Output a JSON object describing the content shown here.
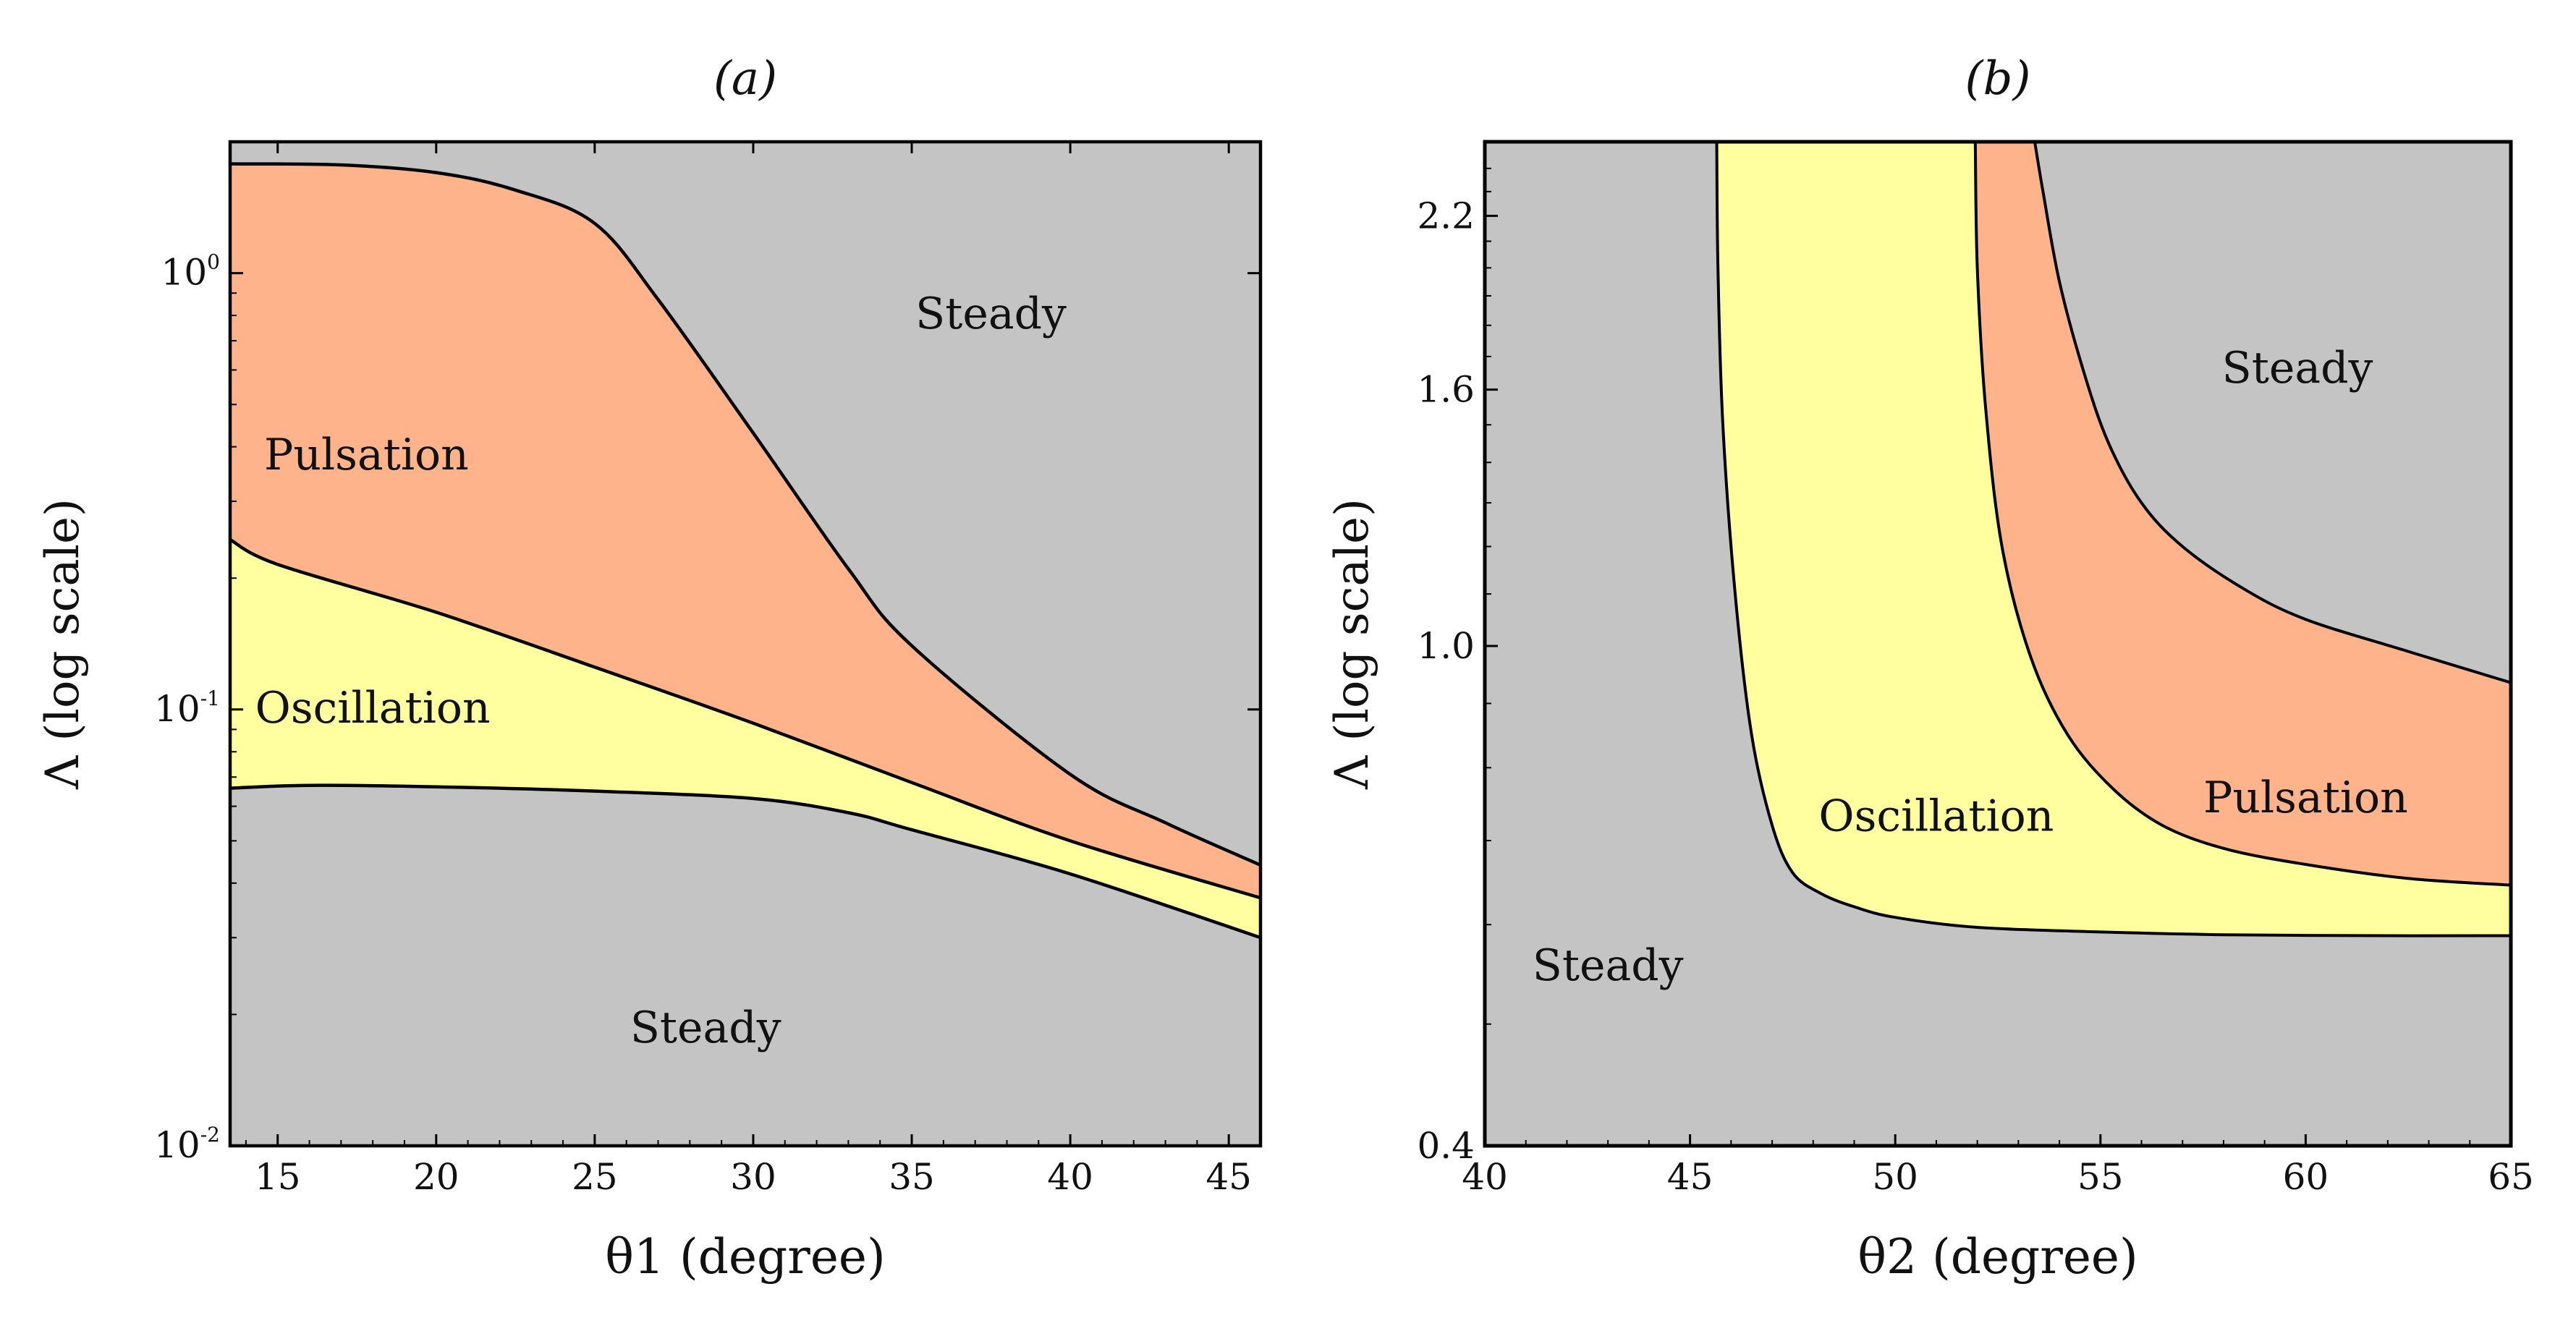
{
  "figure": {
    "background": "#ffffff"
  },
  "colors": {
    "steady": "#c4c4c4",
    "pulsation": "#ffb38a",
    "oscillation": "#ffff9f",
    "boundary": "#000000"
  },
  "chart_data": [
    {
      "type": "area",
      "title": "(a)",
      "xlabel": "θ1 (degree)",
      "ylabel": "Λ (log scale)",
      "xlim": [
        13.5,
        46
      ],
      "ylim": [
        0.01,
        2
      ],
      "yscale": "log",
      "xticks": [
        15,
        20,
        25,
        30,
        35,
        40,
        45
      ],
      "xtick_labels": [
        "15",
        "20",
        "25",
        "30",
        "35",
        "40",
        "45"
      ],
      "yticks": [
        0.01,
        0.1,
        1
      ],
      "ytick_labels": [
        {
          "base": "10",
          "exp": "-2"
        },
        {
          "base": "10",
          "exp": "-1"
        },
        {
          "base": "10",
          "exp": "0"
        }
      ],
      "boundaries": {
        "steady_lower": {
          "x": [
            13.5,
            16,
            20,
            25,
            30,
            33,
            35,
            40,
            46
          ],
          "y": [
            0.066,
            0.067,
            0.0665,
            0.065,
            0.0625,
            0.058,
            0.053,
            0.042,
            0.03
          ]
        },
        "oscillation_upper": {
          "x": [
            13.5,
            15,
            20,
            25,
            30,
            35,
            40,
            46
          ],
          "y": [
            0.245,
            0.215,
            0.167,
            0.125,
            0.093,
            0.068,
            0.05,
            0.037
          ]
        },
        "pulsation_upper": {
          "x": [
            13.5,
            17,
            20,
            22.5,
            25,
            27,
            30,
            33,
            35,
            40,
            43,
            46
          ],
          "y": [
            1.78,
            1.77,
            1.7,
            1.55,
            1.3,
            0.87,
            0.43,
            0.21,
            0.14,
            0.071,
            0.055,
            0.044
          ]
        }
      },
      "regions": [
        {
          "label": "Steady",
          "x": 37.5,
          "y": 0.8
        },
        {
          "label": "Pulsation",
          "x": 17.8,
          "y": 0.38
        },
        {
          "label": "Oscillation",
          "x": 18.0,
          "y": 0.1
        },
        {
          "label": "Steady",
          "x": 28.5,
          "y": 0.0185
        }
      ]
    },
    {
      "type": "area",
      "title": "(b)",
      "xlabel": "θ2 (degree)",
      "ylabel": "Λ (log scale)",
      "xlim": [
        40,
        65
      ],
      "ylim": [
        0.4,
        2.52
      ],
      "yscale": "log",
      "xticks": [
        40,
        45,
        50,
        55,
        60,
        65
      ],
      "xtick_labels": [
        "40",
        "45",
        "50",
        "55",
        "60",
        "65"
      ],
      "yticks": [
        0.4,
        1.0,
        1.6,
        2.2
      ],
      "ytick_labels": [
        "0.4",
        "1.0",
        "1.6",
        "2.2"
      ],
      "boundaries": {
        "steady_inner": {
          "x": [
            45.65,
            45.68,
            45.8,
            46.1,
            46.5,
            47.0,
            47.5,
            48.2,
            49,
            50,
            52,
            55,
            58,
            62,
            65
          ],
          "y": [
            2.52,
            2.0,
            1.5,
            1.1,
            0.85,
            0.72,
            0.66,
            0.635,
            0.62,
            0.608,
            0.597,
            0.592,
            0.589,
            0.588,
            0.588
          ]
        },
        "oscillation_outer": {
          "x": [
            51.95,
            52.0,
            52.2,
            52.6,
            53.3,
            54.2,
            55.3,
            56.5,
            58,
            60,
            62.5,
            65
          ],
          "y": [
            2.52,
            2.0,
            1.55,
            1.2,
            0.98,
            0.85,
            0.77,
            0.72,
            0.69,
            0.67,
            0.653,
            0.645
          ]
        },
        "pulsation_outer": {
          "x": [
            53.4,
            53.6,
            54.0,
            54.6,
            55.2,
            56.0,
            57,
            58.5,
            60,
            62.5,
            65
          ],
          "y": [
            2.52,
            2.3,
            1.95,
            1.65,
            1.45,
            1.3,
            1.2,
            1.11,
            1.05,
            0.99,
            0.935
          ]
        }
      },
      "regions": [
        {
          "label": "Steady",
          "x": 59.8,
          "y": 1.66
        },
        {
          "label": "Oscillation",
          "x": 51.0,
          "y": 0.73
        },
        {
          "label": "Pulsation",
          "x": 60.0,
          "y": 0.755
        },
        {
          "label": "Steady",
          "x": 43.0,
          "y": 0.555
        }
      ]
    }
  ]
}
